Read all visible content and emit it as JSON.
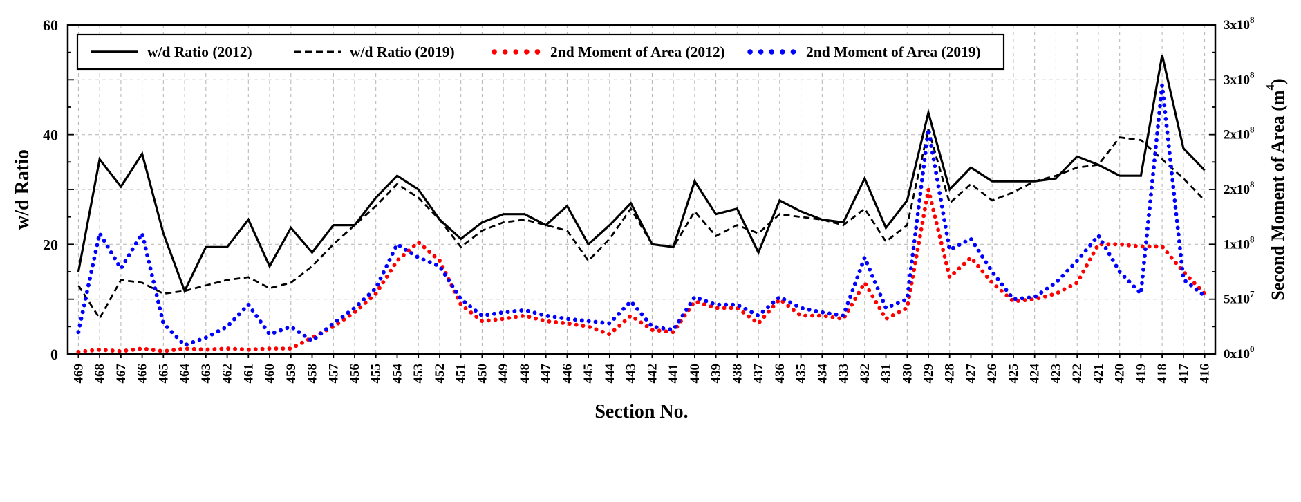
{
  "figure": {
    "background": "#ffffff",
    "frame_color": "#000000"
  },
  "chart_data": {
    "type": "line",
    "title": "",
    "x_axis": {
      "title": "Section No.",
      "categories": [
        469,
        468,
        467,
        466,
        465,
        464,
        463,
        462,
        461,
        460,
        459,
        458,
        457,
        456,
        455,
        454,
        453,
        452,
        451,
        450,
        449,
        448,
        447,
        446,
        445,
        444,
        443,
        442,
        441,
        440,
        439,
        438,
        437,
        436,
        435,
        434,
        433,
        432,
        431,
        430,
        429,
        428,
        427,
        426,
        425,
        424,
        423,
        422,
        421,
        420,
        419,
        418,
        417,
        416
      ]
    },
    "y_axis_left": {
      "title": "w/d Ratio",
      "min": 0,
      "max": 60,
      "major_ticks": [
        0,
        20,
        40,
        60
      ],
      "major_tick_labels": [
        "0",
        "20",
        "40",
        "60"
      ],
      "gridline_step": 10
    },
    "y_axis_right": {
      "title": "Second Moment of Area (m^4)",
      "min": 0,
      "max": 300000000.0,
      "tick_values": [
        0,
        50000000.0,
        100000000.0,
        150000000.0,
        200000000.0,
        250000000.0,
        300000000.0
      ],
      "tick_labels": [
        "0x10^0",
        "5x10^7",
        "1x10^8",
        "2x10^8",
        "2x10^8",
        "3x10^8",
        "3x10^8"
      ]
    },
    "grid": {
      "vertical": "dashed",
      "horizontal": "dashed",
      "color": "#b3b3b3"
    },
    "legend": {
      "position": "top-inside",
      "border_color": "#000000",
      "background": "#ffffff"
    },
    "series": [
      {
        "id": "wd-ratio-2012",
        "name": "w/d Ratio (2012)",
        "axis": "left",
        "style": "solid-line",
        "color": "#000000",
        "values": [
          15,
          35.5,
          30.5,
          36.5,
          22,
          11.5,
          19.5,
          19.5,
          24.5,
          16,
          23,
          18.5,
          23.5,
          23.5,
          28.5,
          32.5,
          30,
          24.5,
          21,
          24,
          25.5,
          25.5,
          23.5,
          27,
          20,
          23.5,
          27.5,
          20,
          19.5,
          31.5,
          25.5,
          26.5,
          18.5,
          28,
          26,
          24.5,
          24,
          32,
          23,
          28,
          44,
          30,
          34,
          31.5,
          31.5,
          31.5,
          32,
          36,
          34.5,
          32.5,
          32.5,
          54.5,
          37.5,
          33.5
        ]
      },
      {
        "id": "wd-ratio-2019",
        "name": "w/d Ratio (2019)",
        "axis": "left",
        "style": "dashed-line",
        "color": "#000000",
        "values": [
          12.5,
          6.5,
          13.5,
          13,
          11,
          11.5,
          12.5,
          13.5,
          14,
          12,
          13,
          16,
          20,
          23.5,
          27,
          31,
          28.5,
          24.5,
          19.5,
          22.5,
          24,
          24.5,
          23.5,
          22.5,
          17,
          21,
          26.5,
          20,
          19.5,
          26,
          21.5,
          23.5,
          22,
          25.5,
          25,
          24.5,
          23.5,
          26.5,
          20.5,
          23.5,
          41,
          27.5,
          31,
          28,
          29.5,
          31.5,
          32.5,
          34,
          34.5,
          39.5,
          39,
          35.5,
          32,
          28
        ]
      },
      {
        "id": "moment-2012",
        "name": "2nd Moment of Area (2012)",
        "axis": "right",
        "style": "dotted",
        "color": "#ff0000",
        "values": [
          2000000.0,
          4000000.0,
          2500000.0,
          5000000.0,
          2500000.0,
          5000000.0,
          4000000.0,
          5000000.0,
          4000000.0,
          5000000.0,
          5000000.0,
          15000000.0,
          25000000.0,
          38000000.0,
          55000000.0,
          85000000.0,
          102000000.0,
          85000000.0,
          45000000.0,
          30000000.0,
          32000000.0,
          35000000.0,
          30000000.0,
          28000000.0,
          25000000.0,
          18000000.0,
          35000000.0,
          22000000.0,
          20000000.0,
          48000000.0,
          42000000.0,
          42000000.0,
          28000000.0,
          50000000.0,
          35000000.0,
          35000000.0,
          32000000.0,
          65000000.0,
          32000000.0,
          42000000.0,
          150000000.0,
          70000000.0,
          88000000.0,
          65000000.0,
          48000000.0,
          50000000.0,
          55000000.0,
          65000000.0,
          100000000.0,
          100000000.0,
          98000000.0,
          98000000.0,
          75000000.0,
          55000000.0
        ]
      },
      {
        "id": "moment-2019",
        "name": "2nd Moment of Area (2019)",
        "axis": "right",
        "style": "dotted",
        "color": "#0000ff",
        "values": [
          20000000.0,
          110000000.0,
          78000000.0,
          110000000.0,
          28000000.0,
          8000000.0,
          15000000.0,
          25000000.0,
          45000000.0,
          18000000.0,
          25000000.0,
          12000000.0,
          28000000.0,
          42000000.0,
          60000000.0,
          100000000.0,
          88000000.0,
          80000000.0,
          50000000.0,
          35000000.0,
          38000000.0,
          40000000.0,
          35000000.0,
          32000000.0,
          30000000.0,
          28000000.0,
          48000000.0,
          25000000.0,
          22000000.0,
          52000000.0,
          45000000.0,
          45000000.0,
          35000000.0,
          52000000.0,
          42000000.0,
          38000000.0,
          35000000.0,
          88000000.0,
          42000000.0,
          50000000.0,
          205000000.0,
          95000000.0,
          105000000.0,
          75000000.0,
          50000000.0,
          52000000.0,
          65000000.0,
          85000000.0,
          108000000.0,
          75000000.0,
          55000000.0,
          245000000.0,
          68000000.0,
          53000000.0
        ]
      }
    ]
  }
}
